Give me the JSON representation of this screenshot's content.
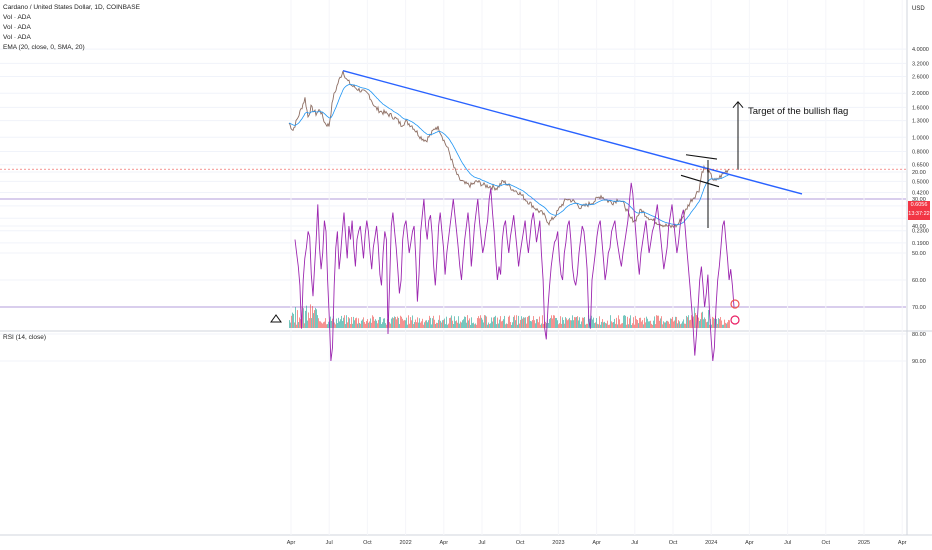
{
  "legend": {
    "title": "Cardano / United States Dollar, 1D, COINBASE",
    "vol1": "Vol · ADA",
    "vol2": "Vol · ADA",
    "vol3": "Vol · ADA",
    "ema": "EMA (20, close, 0, SMA, 20)"
  },
  "rsi_legend": "RSI (14, close)",
  "currency": "USD",
  "last_price": {
    "value": "0.6056",
    "countdown": "13:37:22"
  },
  "annotation": "Target of the bullish flag",
  "colors": {
    "bullish": "#26a69a",
    "bearish": "#ef5350",
    "trendline": "#2962ff",
    "rsi_line": "#9c27b0",
    "rsi_band": "#ede7f6",
    "ema": "#2196f3"
  },
  "chart_data": [
    {
      "type": "line",
      "title": "Cardano / United States Dollar, 1D, COINBASE",
      "scale": "log",
      "price_ticks": [
        "4.0000",
        "3.2000",
        "2.6000",
        "2.0000",
        "1.6000",
        "1.3000",
        "1.0000",
        "0.8000",
        "0.6500",
        "0.5000",
        "0.4200",
        "0.3400",
        "0.2800",
        "0.2300",
        "0.1900"
      ],
      "time_ticks": [
        "Apr",
        "Jul",
        "Oct",
        "2022",
        "Apr",
        "Jul",
        "Oct",
        "2023",
        "Apr",
        "Jul",
        "Oct",
        "2024",
        "Apr",
        "Jul",
        "Oct",
        "2025",
        "Apr"
      ],
      "price_points": [
        {
          "t": 0,
          "p": 1.25
        },
        {
          "t": 4,
          "p": 1.12
        },
        {
          "t": 8,
          "p": 1.32
        },
        {
          "t": 12,
          "p": 1.55
        },
        {
          "t": 16,
          "p": 1.85
        },
        {
          "t": 19,
          "p": 1.38
        },
        {
          "t": 22,
          "p": 1.6
        },
        {
          "t": 27,
          "p": 1.45
        },
        {
          "t": 31,
          "p": 1.55
        },
        {
          "t": 36,
          "p": 1.25
        },
        {
          "t": 40,
          "p": 1.2
        },
        {
          "t": 44,
          "p": 1.85
        },
        {
          "t": 49,
          "p": 2.35
        },
        {
          "t": 54,
          "p": 2.85
        },
        {
          "t": 58,
          "p": 2.45
        },
        {
          "t": 63,
          "p": 2.25
        },
        {
          "t": 68,
          "p": 2.15
        },
        {
          "t": 74,
          "p": 2.05
        },
        {
          "t": 80,
          "p": 1.95
        },
        {
          "t": 86,
          "p": 1.6
        },
        {
          "t": 92,
          "p": 1.5
        },
        {
          "t": 98,
          "p": 1.45
        },
        {
          "t": 103,
          "p": 1.4
        },
        {
          "t": 108,
          "p": 1.32
        },
        {
          "t": 112,
          "p": 1.22
        },
        {
          "t": 117,
          "p": 1.28
        },
        {
          "t": 123,
          "p": 1.2
        },
        {
          "t": 128,
          "p": 1.08
        },
        {
          "t": 132,
          "p": 1.0
        },
        {
          "t": 137,
          "p": 0.95
        },
        {
          "t": 142,
          "p": 1.05
        },
        {
          "t": 147,
          "p": 1.18
        },
        {
          "t": 150,
          "p": 1.15
        },
        {
          "t": 155,
          "p": 0.95
        },
        {
          "t": 160,
          "p": 0.8
        },
        {
          "t": 165,
          "p": 0.62
        },
        {
          "t": 170,
          "p": 0.52
        },
        {
          "t": 176,
          "p": 0.48
        },
        {
          "t": 182,
          "p": 0.47
        },
        {
          "t": 188,
          "p": 0.5
        },
        {
          "t": 195,
          "p": 0.47
        },
        {
          "t": 202,
          "p": 0.46
        },
        {
          "t": 208,
          "p": 0.45
        },
        {
          "t": 214,
          "p": 0.5
        },
        {
          "t": 218,
          "p": 0.48
        },
        {
          "t": 224,
          "p": 0.44
        },
        {
          "t": 230,
          "p": 0.42
        },
        {
          "t": 236,
          "p": 0.38
        },
        {
          "t": 242,
          "p": 0.35
        },
        {
          "t": 248,
          "p": 0.32
        },
        {
          "t": 254,
          "p": 0.3
        },
        {
          "t": 260,
          "p": 0.26
        },
        {
          "t": 266,
          "p": 0.29
        },
        {
          "t": 272,
          "p": 0.34
        },
        {
          "t": 278,
          "p": 0.38
        },
        {
          "t": 283,
          "p": 0.37
        },
        {
          "t": 288,
          "p": 0.35
        },
        {
          "t": 292,
          "p": 0.33
        },
        {
          "t": 296,
          "p": 0.34
        },
        {
          "t": 300,
          "p": 0.35
        },
        {
          "t": 306,
          "p": 0.37
        },
        {
          "t": 312,
          "p": 0.4
        },
        {
          "t": 318,
          "p": 0.37
        },
        {
          "t": 324,
          "p": 0.36
        },
        {
          "t": 330,
          "p": 0.38
        },
        {
          "t": 336,
          "p": 0.34
        },
        {
          "t": 341,
          "p": 0.28
        },
        {
          "t": 346,
          "p": 0.27
        },
        {
          "t": 352,
          "p": 0.32
        },
        {
          "t": 358,
          "p": 0.29
        },
        {
          "t": 364,
          "p": 0.27
        },
        {
          "t": 370,
          "p": 0.26
        },
        {
          "t": 376,
          "p": 0.25
        },
        {
          "t": 382,
          "p": 0.245
        },
        {
          "t": 388,
          "p": 0.25
        },
        {
          "t": 393,
          "p": 0.28
        },
        {
          "t": 398,
          "p": 0.33
        },
        {
          "t": 402,
          "p": 0.37
        },
        {
          "t": 406,
          "p": 0.4
        },
        {
          "t": 410,
          "p": 0.44
        },
        {
          "t": 413,
          "p": 0.58
        },
        {
          "t": 415,
          "p": 0.62
        },
        {
          "t": 418,
          "p": 0.6
        },
        {
          "t": 421,
          "p": 0.56
        },
        {
          "t": 424,
          "p": 0.52
        },
        {
          "t": 427,
          "p": 0.5
        },
        {
          "t": 430,
          "p": 0.53
        },
        {
          "t": 433,
          "p": 0.55
        },
        {
          "t": 436,
          "p": 0.58
        },
        {
          "t": 440,
          "p": 0.6056
        }
      ],
      "trendline": {
        "from": {
          "t": 54,
          "p": 2.85
        },
        "to": {
          "t": 513,
          "p": 0.41
        }
      },
      "flag_lines": [
        {
          "from": {
            "t": 397,
            "p": 0.76
          },
          "to": {
            "t": 428,
            "p": 0.71
          }
        },
        {
          "from": {
            "t": 392,
            "p": 0.55
          },
          "to": {
            "t": 430,
            "p": 0.46
          }
        }
      ]
    },
    {
      "type": "line",
      "title": "RSI (14, close)",
      "ylim": [
        20,
        90
      ],
      "y_ticks": [
        90,
        80,
        70,
        60,
        50,
        40,
        30,
        20
      ],
      "band": [
        30,
        70
      ],
      "values": [
        45,
        50,
        55,
        62,
        78,
        60,
        52,
        48,
        42,
        44,
        58,
        66,
        55,
        45,
        32,
        48,
        56,
        50,
        38,
        42,
        60,
        74,
        90,
        85,
        62,
        48,
        42,
        56,
        50,
        42,
        35,
        44,
        52,
        40,
        45,
        38,
        48,
        55,
        45,
        42,
        40,
        46,
        52,
        43,
        38,
        42,
        50,
        56,
        48,
        44,
        40,
        47,
        58,
        62,
        50,
        42,
        45,
        80,
        60,
        40,
        35,
        42,
        48,
        56,
        65,
        60,
        45,
        40,
        38,
        44,
        50,
        46,
        42,
        40,
        52,
        68,
        58,
        42,
        36,
        30,
        40,
        45,
        38,
        36,
        43,
        55,
        62,
        52,
        40,
        35,
        42,
        48,
        58,
        50,
        45,
        40,
        35,
        30,
        36,
        42,
        48,
        55,
        60,
        52,
        45,
        40,
        35,
        42,
        55,
        48,
        40,
        35,
        30,
        38,
        44,
        50,
        47,
        42,
        38,
        30,
        26,
        35,
        42,
        52,
        60,
        55,
        58,
        45,
        40,
        38,
        45,
        50,
        44,
        40,
        36,
        42,
        48,
        55,
        50,
        46,
        42,
        38,
        45,
        50,
        44,
        38,
        35,
        40,
        46,
        42,
        38,
        50,
        60,
        78,
        82,
        70,
        62,
        55,
        50,
        46,
        45,
        42,
        52,
        58,
        60,
        50,
        46,
        40,
        38,
        45,
        55,
        60,
        62,
        58,
        50,
        45,
        40,
        42,
        48,
        56,
        75,
        78,
        60,
        55,
        50,
        44,
        40,
        38,
        45,
        52,
        60,
        56,
        50,
        48,
        42,
        40,
        38,
        44,
        48,
        52,
        55,
        50,
        46,
        42,
        38,
        30,
        24,
        28,
        36,
        44,
        52,
        58,
        50,
        46,
        42,
        38,
        44,
        50,
        46,
        42,
        40,
        36,
        32,
        38,
        44,
        50,
        56,
        52,
        48,
        40,
        36,
        32,
        38,
        44,
        50,
        46,
        40,
        36,
        34,
        40,
        48,
        55,
        62,
        70,
        78,
        88,
        80,
        70,
        60,
        55,
        62,
        70,
        65,
        58,
        72,
        82,
        90,
        85,
        70,
        60,
        55,
        48,
        40,
        38,
        45,
        52,
        60,
        56,
        62,
        70
      ]
    }
  ]
}
